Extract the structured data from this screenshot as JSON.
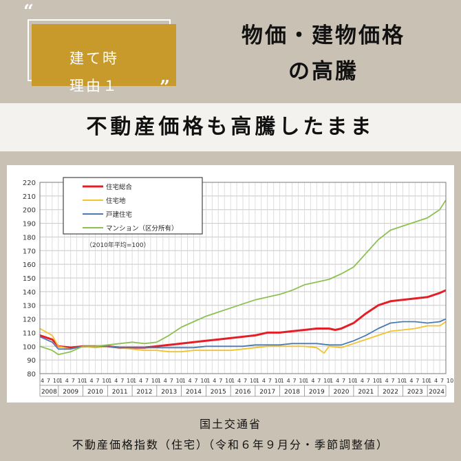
{
  "header": {
    "badge_line1": "建て時",
    "badge_line2": "理由１",
    "title_line1": "物価・建物価格",
    "title_line2": "の高騰",
    "quote_open": "“",
    "quote_close": "”"
  },
  "subtitle": "不動産価格も高騰したまま",
  "source": {
    "line1": "国土交通省",
    "line2": "不動産価格指数（住宅）（令和６年９月分・季節調整値）"
  },
  "chart_data": {
    "type": "line",
    "annotation": "（2010年平均=100）",
    "ylim": [
      80,
      220
    ],
    "yticks": [
      80,
      90,
      100,
      110,
      120,
      130,
      140,
      150,
      160,
      170,
      180,
      190,
      200,
      210,
      220
    ],
    "xlim": [
      2008.25,
      2024.75
    ],
    "years": [
      "2008",
      "2009",
      "2010",
      "2011",
      "2012",
      "2013",
      "2014",
      "2015",
      "2016",
      "2017",
      "2018",
      "2019",
      "2020",
      "2021",
      "2022",
      "2023",
      "2024"
    ],
    "month_tick_labels": [
      "4",
      "7",
      "10",
      "1"
    ],
    "grid": true,
    "legend_position": "top-left",
    "series": [
      {
        "name": "住宅総合",
        "color": "#e41e26",
        "x": [
          2008.25,
          2008.75,
          2009.0,
          2009.5,
          2010.0,
          2010.5,
          2011.0,
          2011.5,
          2012.0,
          2012.5,
          2013.0,
          2013.5,
          2014.0,
          2014.5,
          2015.0,
          2015.5,
          2016.0,
          2016.5,
          2017.0,
          2017.5,
          2018.0,
          2018.5,
          2019.0,
          2019.5,
          2020.0,
          2020.25,
          2020.5,
          2021.0,
          2021.5,
          2022.0,
          2022.5,
          2023.0,
          2023.5,
          2024.0,
          2024.5,
          2024.75
        ],
        "y": [
          108,
          105,
          100,
          99,
          100,
          100,
          100,
          99,
          99,
          99,
          100,
          101,
          102,
          103,
          104,
          105,
          106,
          107,
          108,
          110,
          110,
          111,
          112,
          113,
          113,
          112,
          113,
          117,
          124,
          130,
          133,
          134,
          135,
          136,
          139,
          141
        ]
      },
      {
        "name": "住宅地",
        "color": "#f3c22c",
        "x": [
          2008.25,
          2008.75,
          2009.0,
          2009.5,
          2010.0,
          2010.5,
          2011.0,
          2011.5,
          2012.0,
          2012.5,
          2013.0,
          2013.5,
          2014.0,
          2014.5,
          2015.0,
          2015.5,
          2016.0,
          2016.5,
          2017.0,
          2017.5,
          2018.0,
          2018.5,
          2019.0,
          2019.5,
          2019.8,
          2020.0,
          2020.5,
          2021.0,
          2021.5,
          2022.0,
          2022.5,
          2023.0,
          2023.5,
          2024.0,
          2024.5,
          2024.75
        ],
        "y": [
          113,
          108,
          100,
          98,
          100,
          99,
          100,
          99,
          98,
          97,
          97,
          96,
          96,
          97,
          97,
          97,
          97,
          98,
          99,
          100,
          100,
          100,
          100,
          99,
          95,
          100,
          99,
          102,
          105,
          108,
          111,
          112,
          113,
          115,
          115,
          118
        ]
      },
      {
        "name": "戸建住宅",
        "color": "#4a7ab5",
        "x": [
          2008.25,
          2008.75,
          2009.0,
          2009.5,
          2010.0,
          2010.5,
          2011.0,
          2011.5,
          2012.0,
          2012.5,
          2013.0,
          2013.5,
          2014.0,
          2014.5,
          2015.0,
          2015.5,
          2016.0,
          2016.5,
          2017.0,
          2017.5,
          2018.0,
          2018.5,
          2019.0,
          2019.5,
          2020.0,
          2020.5,
          2021.0,
          2021.5,
          2022.0,
          2022.5,
          2023.0,
          2023.5,
          2024.0,
          2024.5,
          2024.75
        ],
        "y": [
          107,
          103,
          98,
          98,
          100,
          100,
          100,
          99,
          99,
          99,
          99,
          99,
          99,
          99,
          100,
          100,
          100,
          100,
          101,
          101,
          101,
          102,
          102,
          102,
          101,
          101,
          104,
          108,
          113,
          117,
          118,
          118,
          117,
          118,
          120
        ]
      },
      {
        "name": "マンション（区分所有）",
        "color": "#8cc152",
        "x": [
          2008.25,
          2008.75,
          2009.0,
          2009.5,
          2010.0,
          2010.5,
          2011.0,
          2011.5,
          2012.0,
          2012.5,
          2013.0,
          2013.5,
          2014.0,
          2014.5,
          2015.0,
          2015.5,
          2016.0,
          2016.5,
          2017.0,
          2017.5,
          2018.0,
          2018.5,
          2019.0,
          2019.5,
          2020.0,
          2020.5,
          2021.0,
          2021.5,
          2022.0,
          2022.5,
          2023.0,
          2023.5,
          2024.0,
          2024.5,
          2024.75
        ],
        "y": [
          100,
          97,
          94,
          96,
          100,
          100,
          101,
          102,
          103,
          102,
          103,
          108,
          114,
          118,
          122,
          125,
          128,
          131,
          134,
          136,
          138,
          141,
          145,
          147,
          149,
          153,
          158,
          168,
          178,
          185,
          188,
          191,
          194,
          200,
          207
        ]
      }
    ]
  }
}
